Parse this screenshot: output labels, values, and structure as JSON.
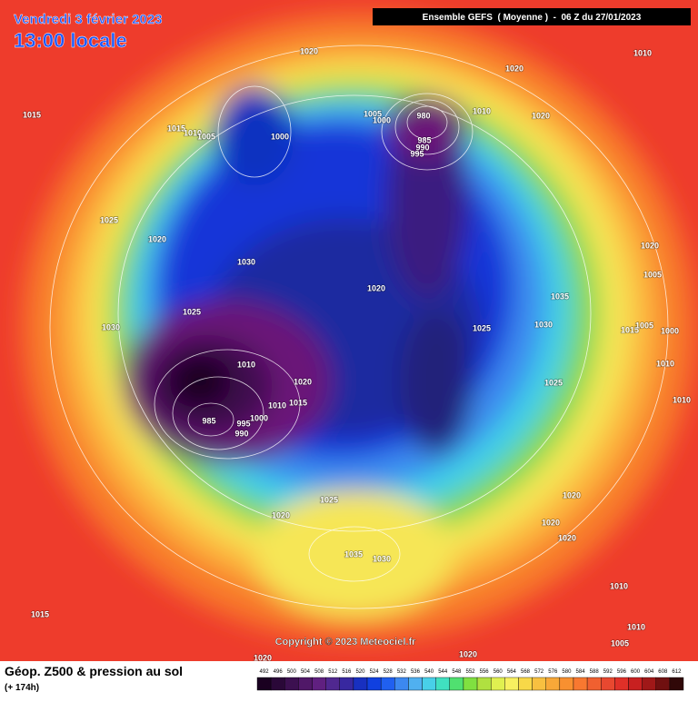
{
  "header": {
    "date": "Vendredi 3 février 2023",
    "time": "13:00 locale",
    "run": "Ensemble GEFS  ( Moyenne )  -  06 Z du 27/01/2023"
  },
  "copyright": "Copyright © 2023 Meteociel.fr",
  "footer": {
    "title": "Géop. Z500 & pression au sol",
    "lead": "(+ 174h)"
  },
  "isobar_labels": [
    "1020",
    "1020",
    "1010",
    "1015",
    "1015",
    "1010",
    "1005",
    "1000",
    "1005",
    "1000",
    "980",
    "1010",
    "1020",
    "985",
    "990",
    "995",
    "1025",
    "1020",
    "1030",
    "1020",
    "1020",
    "1005",
    "1035",
    "1025",
    "1030",
    "1025",
    "1030",
    "1015",
    "1005",
    "1000",
    "1010",
    "1010",
    "1020",
    "1025",
    "1010",
    "1015",
    "1010",
    "1000",
    "985",
    "995",
    "990",
    "1025",
    "1020",
    "1020",
    "1020",
    "1020",
    "1035",
    "1030",
    "1010",
    "1015",
    "1010",
    "1005",
    "1020",
    "1020"
  ],
  "legend": {
    "labels": [
      492,
      496,
      500,
      504,
      508,
      512,
      516,
      520,
      524,
      528,
      532,
      536,
      540,
      544,
      548,
      552,
      556,
      560,
      564,
      568,
      572,
      576,
      580,
      584,
      588,
      592,
      596,
      600,
      604,
      608,
      612
    ],
    "colors": [
      "#1a0020",
      "#2a0838",
      "#3c1050",
      "#501868",
      "#602080",
      "#502890",
      "#3828a0",
      "#1830c0",
      "#1040e0",
      "#2060f0",
      "#3c88f0",
      "#50b0f0",
      "#48d0e8",
      "#40e0c0",
      "#50e070",
      "#80e040",
      "#b0e040",
      "#e0f050",
      "#f8f060",
      "#f8d848",
      "#f8c040",
      "#f8a838",
      "#f89030",
      "#f87830",
      "#f06030",
      "#e84830",
      "#e03028",
      "#c82020",
      "#a01818",
      "#701010",
      "#300808"
    ]
  }
}
